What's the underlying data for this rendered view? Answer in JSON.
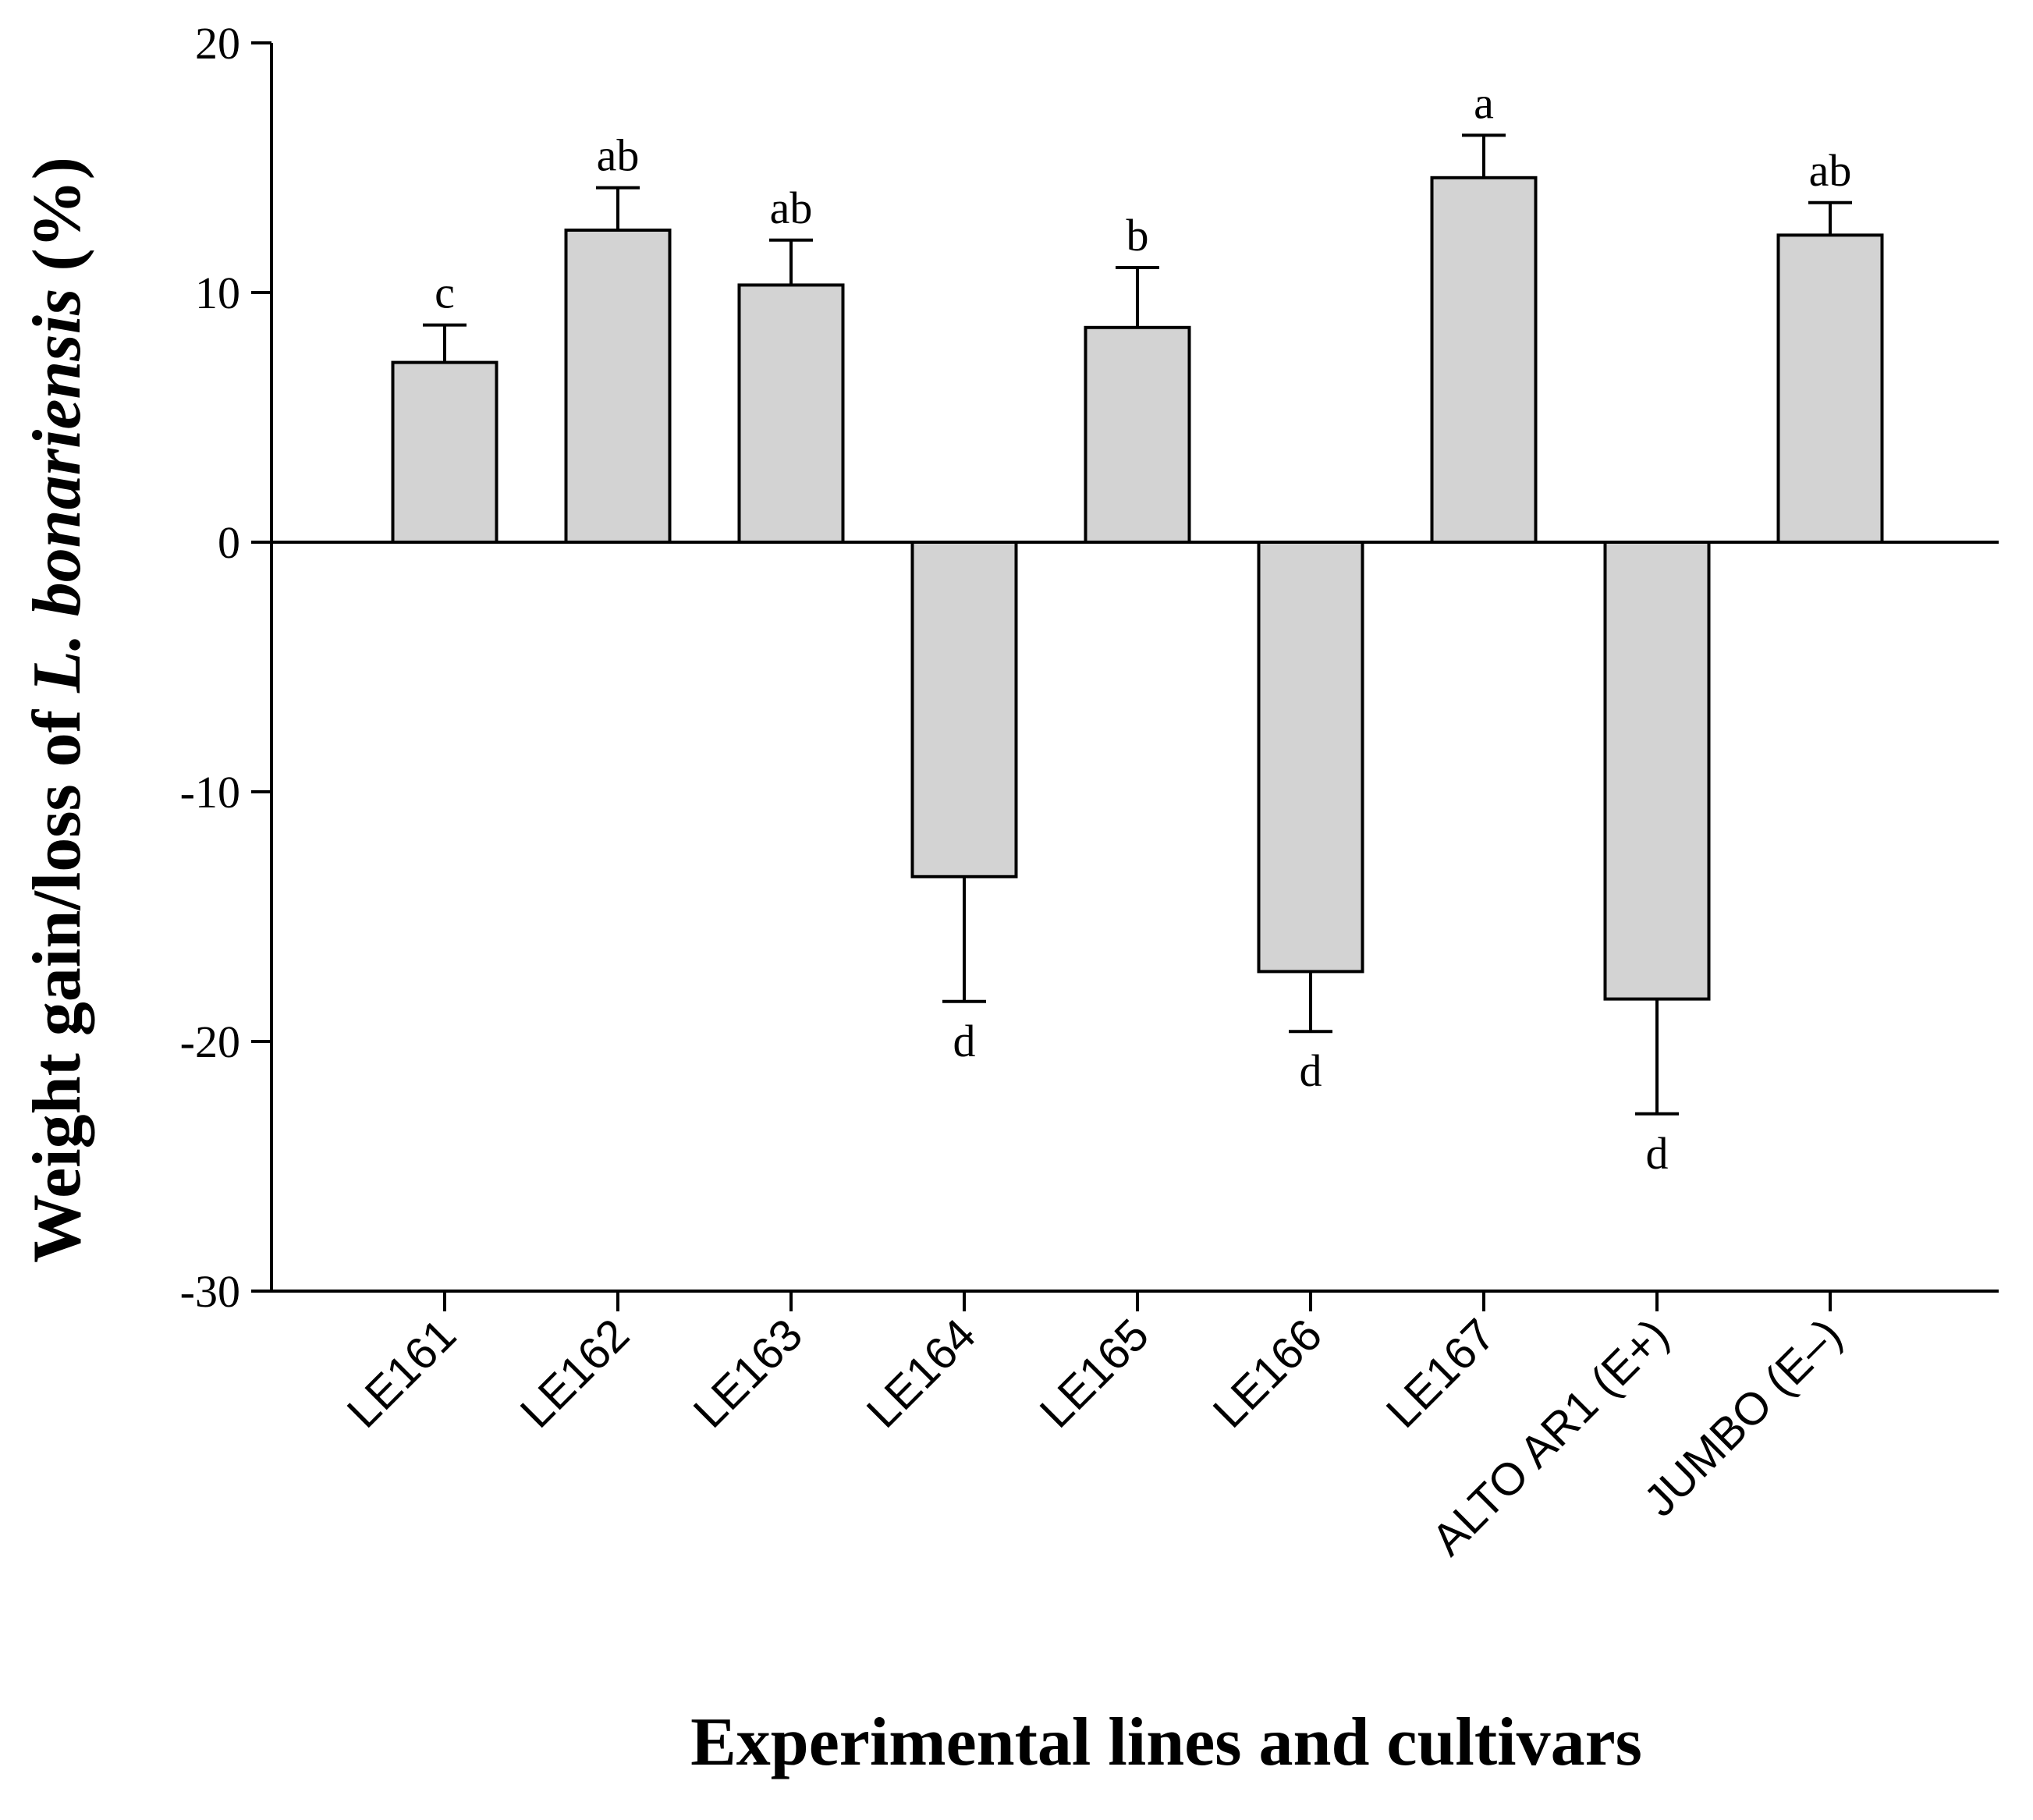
{
  "chart_data": {
    "type": "bar",
    "title": "",
    "xlabel": "Experimental lines and cultivars",
    "ylabel_parts": [
      {
        "text": "Weight gain/loss of ",
        "italic": false
      },
      {
        "text": "L. bonariensis",
        "italic": true
      },
      {
        "text": " (%)",
        "italic": false
      }
    ],
    "ylim": [
      -30,
      20
    ],
    "yticks": [
      20,
      10,
      0,
      -10,
      -20,
      -30
    ],
    "categories": [
      "LE161",
      "LE162",
      "LE163",
      "LE164",
      "LE165",
      "LE166",
      "LE167",
      "ALTO AR1 (E+)",
      "JUMBO (E–)"
    ],
    "values": [
      7.2,
      12.5,
      10.3,
      -13.4,
      8.6,
      -17.2,
      14.6,
      -18.3,
      12.3
    ],
    "errors": [
      1.5,
      1.7,
      1.8,
      5.0,
      2.4,
      2.4,
      1.7,
      4.6,
      1.3
    ],
    "significance": [
      "c",
      "ab",
      "ab",
      "d",
      "b",
      "d",
      "a",
      "d",
      "ab"
    ],
    "grid": false,
    "legend": "none",
    "colors": {
      "bar_fill": "#d3d3d3",
      "bar_stroke": "#000000",
      "axis": "#000000"
    }
  }
}
